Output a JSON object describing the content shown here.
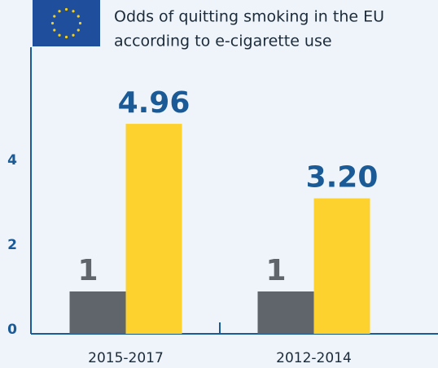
{
  "chart_data": {
    "type": "bar",
    "title": [
      "Odds of quitting smoking in the EU",
      "according to e-cigarette use"
    ],
    "categories": [
      "2015-2017",
      "2012-2014"
    ],
    "series": [
      {
        "color": "#5f656b",
        "values": [
          1,
          1
        ]
      },
      {
        "color": "#fdd22f",
        "values": [
          4.96,
          3.2
        ],
        "value_labels": [
          "4.96",
          "3.20"
        ]
      }
    ],
    "ylim": [
      0,
      7
    ],
    "yticks": [
      0,
      2,
      4
    ]
  }
}
